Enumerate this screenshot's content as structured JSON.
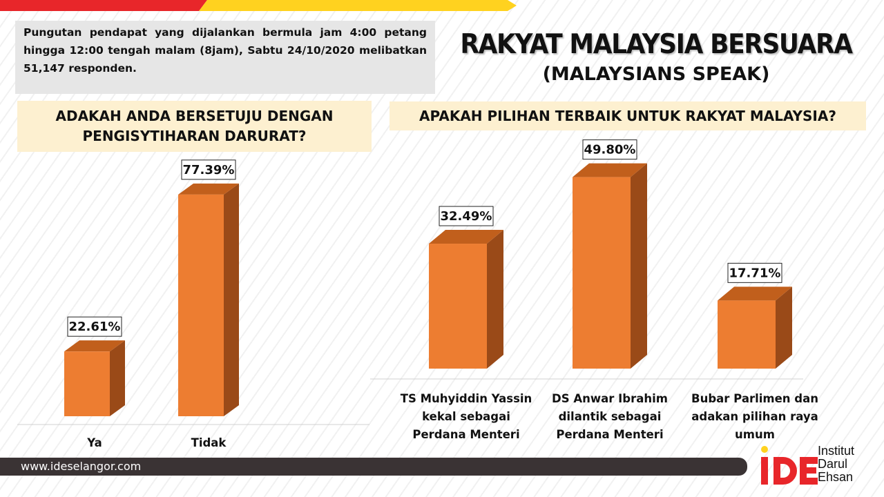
{
  "header": {
    "note": "Pungutan pendapat yang dijalankan bermula jam 4:00 petang hingga 12:00 tengah malam (8jam), Sabtu 24/10/2020 melibatkan 51,147 responden.",
    "title": "RAKYAT MALAYSIA BERSUARA",
    "subtitle": "(MALAYSIANS SPEAK)"
  },
  "colors": {
    "bar_front": "#ed7d31",
    "bar_top": "#c15f1c",
    "bar_side": "#9a4a18",
    "question_bg": "#fdf0d0",
    "footer_bg": "#3a3334",
    "accent_red": "#e8262a",
    "accent_yellow": "#ffd21f"
  },
  "chart_data": [
    {
      "type": "bar",
      "title": "ADAKAH ANDA BERSETUJU DENGAN PENGISYTIHARAN DARURAT?",
      "categories": [
        "Ya",
        "Tidak"
      ],
      "values": [
        22.61,
        77.39
      ],
      "labels": [
        "22.61%",
        "77.39%"
      ],
      "unit": "%",
      "ylim": [
        0,
        100
      ],
      "grid": false,
      "style": "3d"
    },
    {
      "type": "bar",
      "title": "APAKAH PILIHAN TERBAIK UNTUK RAKYAT MALAYSIA?",
      "categories": [
        "TS Muhyiddin Yassin kekal sebagai Perdana Menteri",
        "DS Anwar Ibrahim dilantik sebagai Perdana Menteri",
        "Bubar Parlimen dan adakan pilihan raya umum"
      ],
      "category_lines": [
        [
          "TS Muhyiddin Yassin",
          "kekal sebagai",
          "Perdana Menteri"
        ],
        [
          "DS Anwar Ibrahim",
          "dilantik sebagai",
          "Perdana Menteri"
        ],
        [
          "Bubar Parlimen dan",
          "adakan pilihan raya",
          "umum"
        ]
      ],
      "values": [
        32.49,
        49.8,
        17.71
      ],
      "labels": [
        "32.49%",
        "49.80%",
        "17.71%"
      ],
      "unit": "%",
      "ylim": [
        0,
        100
      ],
      "grid": false,
      "style": "3d"
    }
  ],
  "footer": {
    "url": "www.ideselangor.com",
    "logo_mark": "iDE",
    "logo_lines": [
      "Institut",
      "Darul",
      "Ehsan"
    ]
  }
}
